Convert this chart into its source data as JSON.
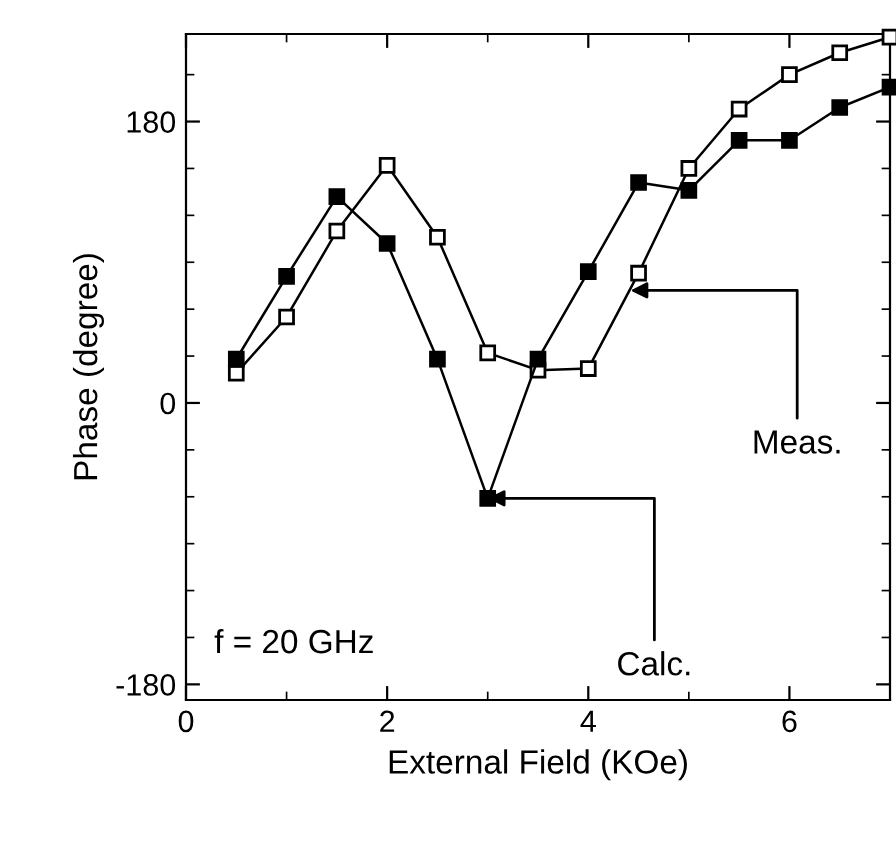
{
  "chart_data": {
    "type": "line",
    "xlabel": "External Field (KOe)",
    "ylabel": "Phase (degree)",
    "x": [
      0.5,
      1.0,
      1.5,
      2.0,
      2.5,
      3.0,
      3.5,
      4.0,
      4.5,
      5.0,
      5.5,
      6.0,
      6.5,
      7.0
    ],
    "series": [
      {
        "color": "#000000",
        "marker": "square",
        "values": [
          19,
          55,
          110,
          152,
          106,
          32,
          21,
          22,
          83,
          150,
          188,
          210,
          224,
          234
        ]
      },
      {
        "color": "#000000",
        "marker": "square",
        "values": [
          28,
          81,
          132,
          102,
          28,
          -61,
          28,
          84,
          141,
          136,
          168,
          168,
          189,
          202
        ]
      }
    ],
    "annotations": [
      {
        "text": "Meas.",
        "x": 4.42,
        "y": 72
      },
      {
        "text": "Calc.",
        "x": 3.0,
        "y": -61
      },
      "f = 20 GHz"
    ],
    "xlim": [
      0,
      7
    ],
    "ylim": [
      -190,
      236
    ],
    "xticks": [
      0,
      2,
      4,
      6
    ],
    "yticks": [
      -180,
      0,
      180
    ],
    "grid": false,
    "legend": false,
    "line_style": "solid"
  }
}
